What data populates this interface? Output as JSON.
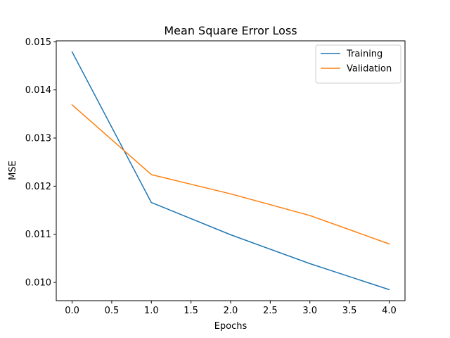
{
  "chart_data": {
    "type": "line",
    "title": "Mean Square Error Loss",
    "xlabel": "Epochs",
    "ylabel": "MSE",
    "x": [
      0,
      1,
      2,
      3,
      4
    ],
    "xlim": [
      -0.2,
      4.2
    ],
    "ylim": [
      0.00962,
      0.01502
    ],
    "xticks": [
      0.0,
      0.5,
      1.0,
      1.5,
      2.0,
      2.5,
      3.0,
      3.5,
      4.0
    ],
    "xtick_labels": [
      "0.0",
      "0.5",
      "1.0",
      "1.5",
      "2.0",
      "2.5",
      "3.0",
      "3.5",
      "4.0"
    ],
    "yticks": [
      0.01,
      0.011,
      0.012,
      0.013,
      0.014,
      0.015
    ],
    "ytick_labels": [
      "0.010",
      "0.011",
      "0.012",
      "0.013",
      "0.014",
      "0.015"
    ],
    "grid": false,
    "legend_position": "top-right",
    "series": [
      {
        "name": "Training",
        "color": "#1f77b4",
        "values": [
          0.01479,
          0.01166,
          0.01099,
          0.01039,
          0.00985
        ]
      },
      {
        "name": "Validation",
        "color": "#ff7f0e",
        "values": [
          0.01369,
          0.01224,
          0.01184,
          0.01139,
          0.0108
        ]
      }
    ]
  }
}
